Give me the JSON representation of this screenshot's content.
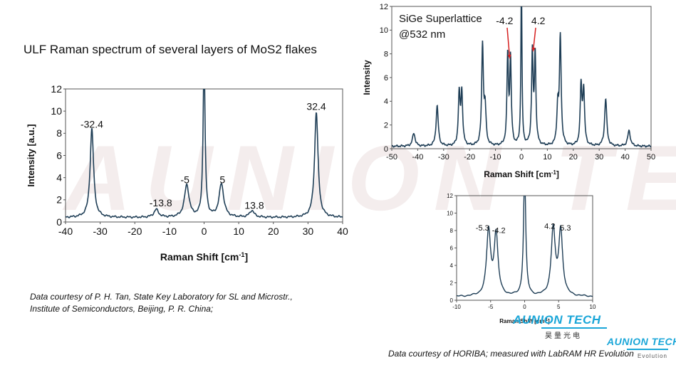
{
  "page": {
    "title": "ULF Raman spectrum of several layers of MoS2 flakes",
    "credit1_line1": "Data courtesy of P. H. Tan, State Key Laboratory for SL and Microstr.,",
    "credit1_line2": "Institute of Semiconductors, Beijing, P. R. China;",
    "credit2": "Data courtesy of HORIBA; measured with LabRAM HR Evolution",
    "watermark": "AUNION TECH",
    "logo1": "AUNION TECH",
    "logo1_sub": "昊量光电",
    "logo2": "AUNION TECH",
    "logo2_sub": "Evolution",
    "line_color": "#1f3e56",
    "axis_color": "#555555"
  },
  "chart_data": [
    {
      "id": "mos2",
      "type": "line",
      "xlabel": "Raman Shift [cm-1]",
      "ylabel": "Intensity [a.u.]",
      "xlim": [
        -40,
        40
      ],
      "ylim": [
        0,
        12
      ],
      "xticks": [
        -40,
        -30,
        -20,
        -10,
        0,
        10,
        20,
        30,
        40
      ],
      "yticks": [
        0,
        2,
        4,
        6,
        8,
        10,
        12
      ],
      "baseline": 0.4,
      "peaks": [
        {
          "x": -32.4,
          "y": 8.0,
          "w": 0.6
        },
        {
          "x": -13.8,
          "y": 0.7,
          "w": 0.8
        },
        {
          "x": -5,
          "y": 2.9,
          "w": 0.8
        },
        {
          "x": 0,
          "y": 14,
          "w": 0.35
        },
        {
          "x": 5,
          "y": 3.0,
          "w": 0.8
        },
        {
          "x": 13.8,
          "y": 0.6,
          "w": 0.8
        },
        {
          "x": 32.4,
          "y": 9.5,
          "w": 0.6
        }
      ],
      "annotations": [
        {
          "text": "-32.4",
          "x": -32.4,
          "y": 8.5
        },
        {
          "text": "-13.8",
          "x": -12.5,
          "y": 1.4
        },
        {
          "text": "-5",
          "x": -5.5,
          "y": 3.5
        },
        {
          "text": "5",
          "x": 5.3,
          "y": 3.5
        },
        {
          "text": "13.8",
          "x": 14.5,
          "y": 1.2
        },
        {
          "text": "32.4",
          "x": 32.4,
          "y": 10.1
        }
      ]
    },
    {
      "id": "sige",
      "type": "line",
      "xlabel": "Raman Shift [cm-1]",
      "ylabel": "Intensity",
      "note_line1": "SiGe Superlattice",
      "note_line2": "@532 nm",
      "xlim": [
        -50,
        50
      ],
      "ylim": [
        0,
        12
      ],
      "xticks": [
        -50,
        -40,
        -30,
        -20,
        -10,
        0,
        10,
        20,
        30,
        40,
        50
      ],
      "yticks": [
        0,
        2,
        4,
        6,
        8,
        10,
        12
      ],
      "baseline": 0.2,
      "peaks": [
        {
          "x": -41.5,
          "y": 1.1,
          "w": 0.6
        },
        {
          "x": -32.5,
          "y": 3.4,
          "w": 0.5
        },
        {
          "x": -24,
          "y": 4.3,
          "w": 0.4
        },
        {
          "x": -23,
          "y": 4.4,
          "w": 0.4
        },
        {
          "x": -15,
          "y": 8.5,
          "w": 0.4
        },
        {
          "x": -14,
          "y": 3.0,
          "w": 0.4
        },
        {
          "x": -5.3,
          "y": 7.5,
          "w": 0.35
        },
        {
          "x": -4.2,
          "y": 7.2,
          "w": 0.35
        },
        {
          "x": 0,
          "y": 14,
          "w": 0.25
        },
        {
          "x": 4.2,
          "y": 7.8,
          "w": 0.35
        },
        {
          "x": 5.3,
          "y": 7.6,
          "w": 0.35
        },
        {
          "x": 14,
          "y": 3.1,
          "w": 0.4
        },
        {
          "x": 15,
          "y": 9.1,
          "w": 0.4
        },
        {
          "x": 23,
          "y": 5.0,
          "w": 0.4
        },
        {
          "x": 24,
          "y": 4.6,
          "w": 0.4
        },
        {
          "x": 32.5,
          "y": 4.0,
          "w": 0.5
        },
        {
          "x": 41.5,
          "y": 1.3,
          "w": 0.6
        }
      ],
      "annotations": [
        {
          "text": "-4.2",
          "x": -6.5,
          "y": 10.5
        },
        {
          "text": "4.2",
          "x": 6.5,
          "y": 10.5
        }
      ],
      "arrows": [
        {
          "from": [
            -5.5,
            10.2
          ],
          "to": [
            -4.5,
            7.6
          ]
        },
        {
          "from": [
            5.5,
            10.2
          ],
          "to": [
            4.5,
            8.2
          ]
        }
      ]
    },
    {
      "id": "sige-zoom",
      "type": "line",
      "xlabel": "Raman Shift [cm-1]",
      "ylabel": "",
      "xlim": [
        -10,
        10
      ],
      "ylim": [
        0,
        12
      ],
      "xticks": [
        -10,
        -5,
        0,
        5,
        10
      ],
      "yticks": [
        0,
        2,
        4,
        6,
        8,
        10,
        12
      ],
      "baseline": 0.4,
      "peaks": [
        {
          "x": -5.3,
          "y": 7.4,
          "w": 0.35
        },
        {
          "x": -4.2,
          "y": 7.0,
          "w": 0.35
        },
        {
          "x": 0,
          "y": 14,
          "w": 0.2
        },
        {
          "x": 4.2,
          "y": 7.6,
          "w": 0.35
        },
        {
          "x": 5.3,
          "y": 7.4,
          "w": 0.35
        }
      ],
      "annotations": [
        {
          "text": "-5.3",
          "x": -6.2,
          "y": 8.0
        },
        {
          "text": "-4.2",
          "x": -3.8,
          "y": 7.7
        },
        {
          "text": "4.2",
          "x": 3.7,
          "y": 8.2
        },
        {
          "text": "5.3",
          "x": 6.0,
          "y": 8.0
        }
      ]
    }
  ]
}
